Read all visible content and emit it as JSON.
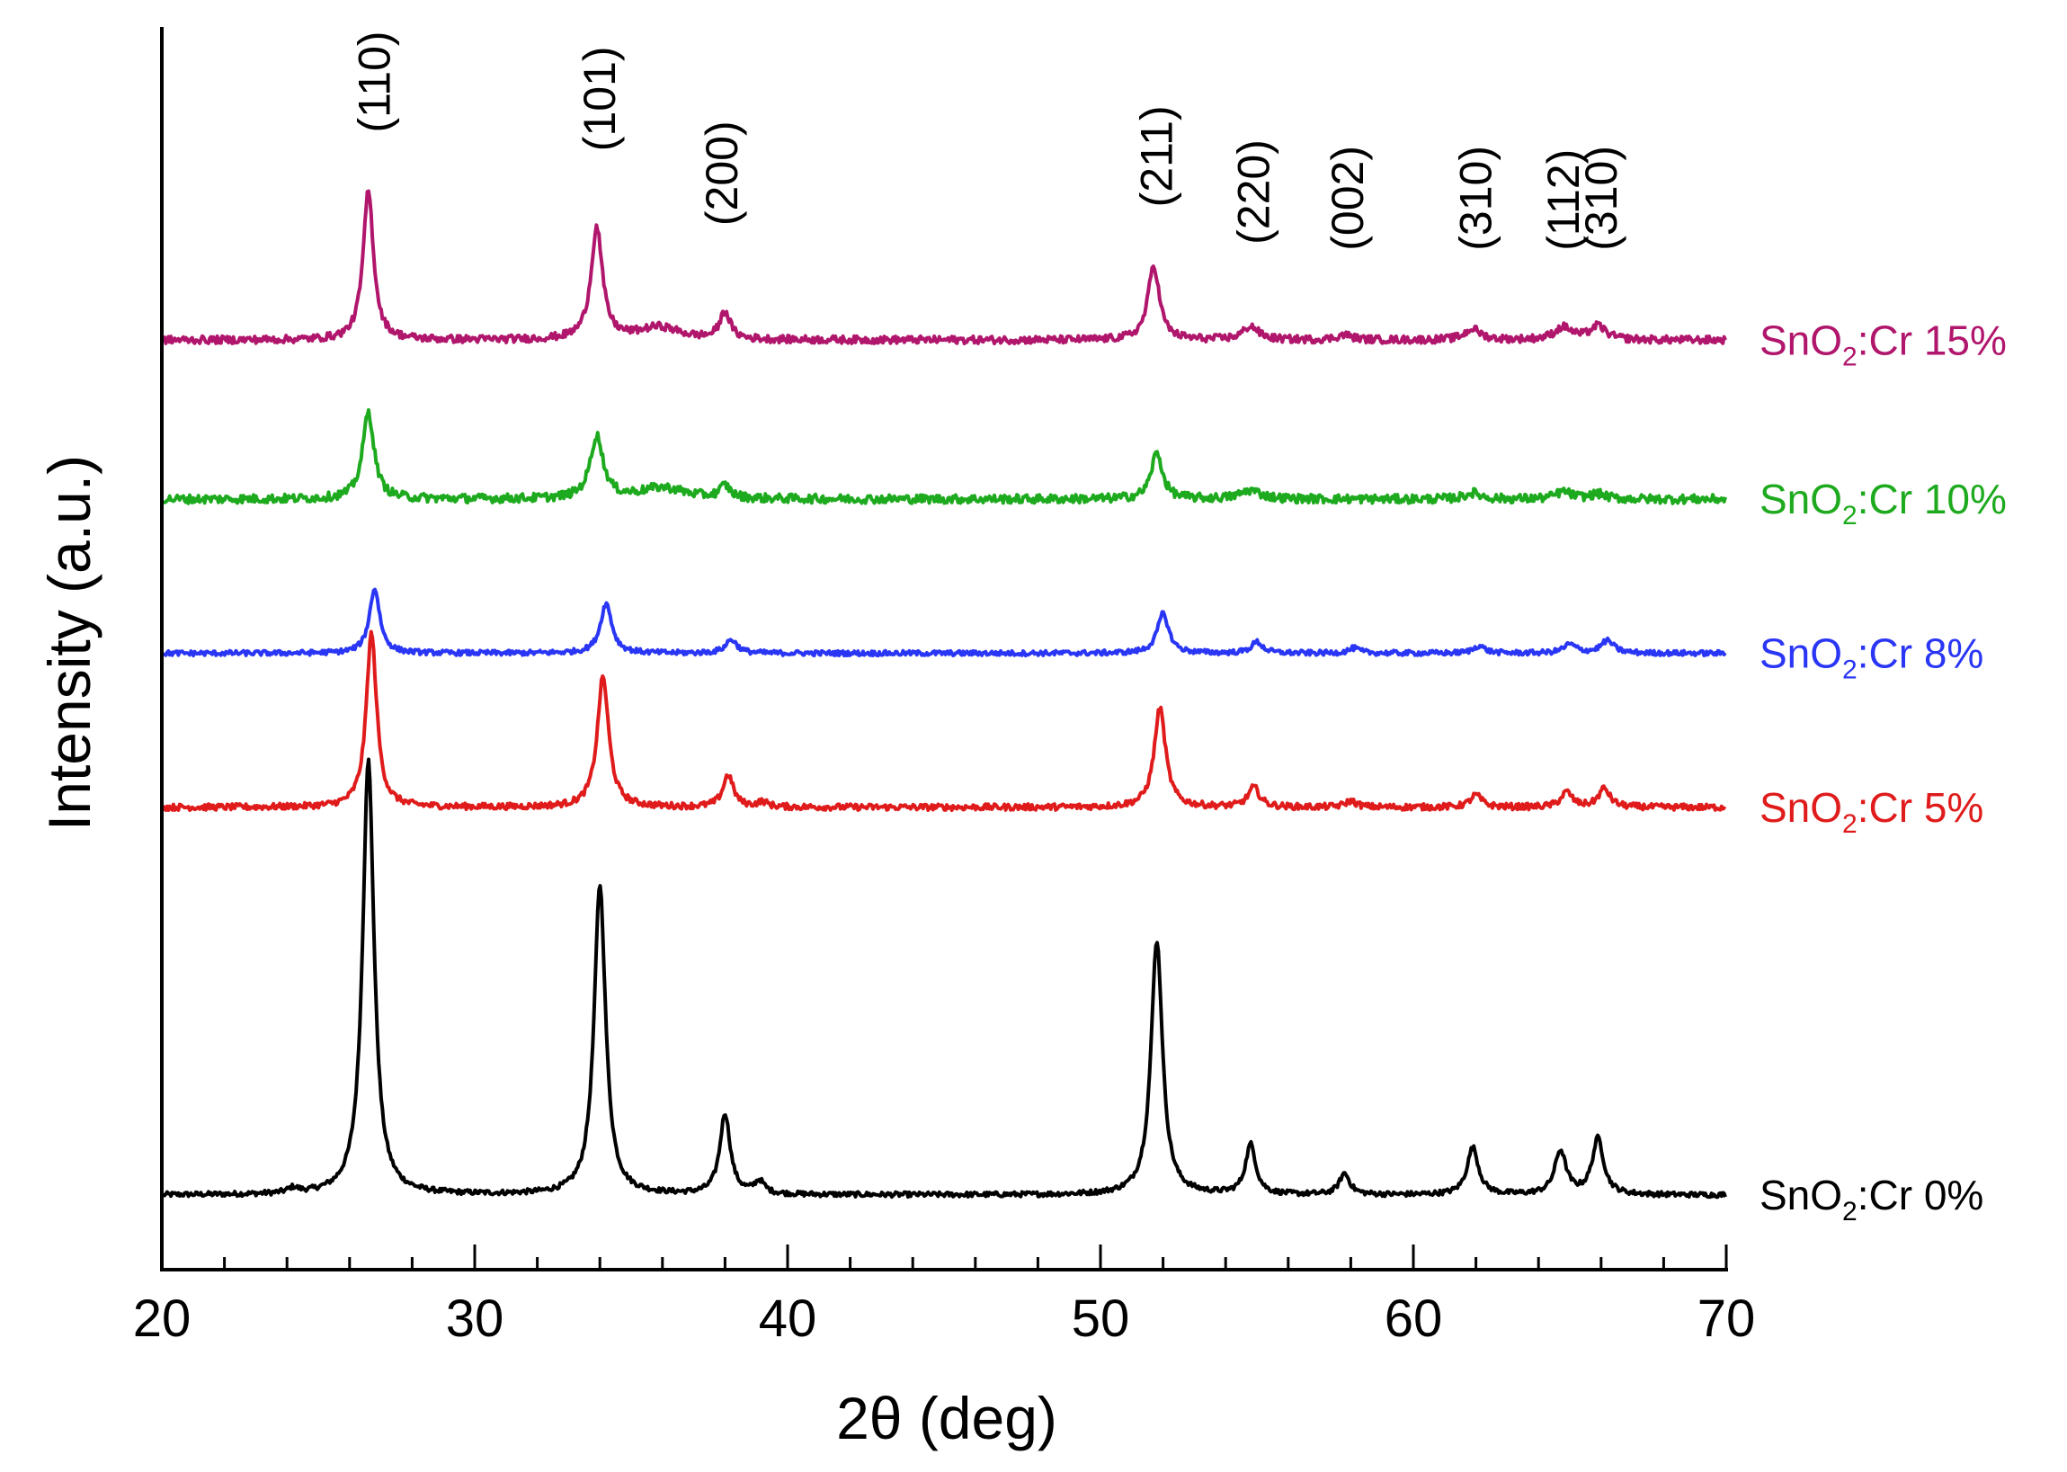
{
  "chart_data": {
    "type": "line",
    "title": "",
    "xlabel": "2θ (deg)",
    "ylabel": "Intensity (a.u.)",
    "xlim": [
      20,
      70
    ],
    "ylim": [
      0,
      100
    ],
    "x_ticks": [
      20,
      30,
      40,
      50,
      60,
      70
    ],
    "x_tick_labels": [
      "20",
      "30",
      "40",
      "50",
      "60",
      "70"
    ],
    "x_minor_step": 2,
    "grid": false,
    "peak_labels": [
      {
        "text": "(110)",
        "x": 26.8,
        "y": 91.5
      },
      {
        "text": "(101)",
        "x": 34.0,
        "y": 90.0
      },
      {
        "text": "(200)",
        "x": 37.9,
        "y": 84.0
      },
      {
        "text": "(211)",
        "x": 51.8,
        "y": 85.5
      },
      {
        "text": "(220)",
        "x": 54.9,
        "y": 82.5
      },
      {
        "text": "(002)",
        "x": 57.9,
        "y": 82.0
      },
      {
        "text": "(310)",
        "x": 62.0,
        "y": 82.0
      },
      {
        "text": "(112)",
        "x": 64.8,
        "y": 82.0
      },
      {
        "text": "(310)",
        "x": 66.0,
        "y": 82.0
      }
    ],
    "series": [
      {
        "name": "SnO2:Cr 0%",
        "legend_main": "SnO",
        "legend_sub": "2",
        "legend_tail": ":Cr 0%",
        "color": "#000000",
        "baseline": 6.0,
        "noise": 0.2,
        "peaks": [
          [
            26.6,
            35.0,
            0.22
          ],
          [
            34.0,
            25.0,
            0.22
          ],
          [
            38.0,
            6.5,
            0.2
          ],
          [
            39.1,
            1.0,
            0.2
          ],
          [
            51.8,
            20.5,
            0.22
          ],
          [
            54.8,
            4.0,
            0.2
          ],
          [
            57.8,
            1.7,
            0.2
          ],
          [
            61.9,
            3.8,
            0.22
          ],
          [
            64.7,
            3.5,
            0.22
          ],
          [
            65.9,
            4.5,
            0.22
          ],
          [
            24.2,
            0.4,
            0.2
          ]
        ]
      },
      {
        "name": "SnO2:Cr 5%",
        "legend_main": "SnO",
        "legend_sub": "2",
        "legend_tail": ":Cr 5%",
        "color": "#e01b1b",
        "baseline": 37.2,
        "noise": 0.25,
        "peaks": [
          [
            26.7,
            14.0,
            0.2
          ],
          [
            34.1,
            10.5,
            0.22
          ],
          [
            38.1,
            2.6,
            0.2
          ],
          [
            39.2,
            0.4,
            0.2
          ],
          [
            51.9,
            8.0,
            0.22
          ],
          [
            54.9,
            1.6,
            0.22
          ],
          [
            58.0,
            0.5,
            0.22
          ],
          [
            62.0,
            1.0,
            0.22
          ],
          [
            64.9,
            1.2,
            0.22
          ],
          [
            66.1,
            1.5,
            0.22
          ]
        ]
      },
      {
        "name": "SnO2:Cr 8%",
        "legend_main": "SnO",
        "legend_sub": "2",
        "legend_tail": ":Cr 8%",
        "color": "#2a36f5",
        "baseline": 49.6,
        "noise": 0.2,
        "peaks": [
          [
            26.8,
            5.2,
            0.2
          ],
          [
            34.2,
            4.0,
            0.22
          ],
          [
            38.2,
            1.1,
            0.22
          ],
          [
            52.0,
            3.2,
            0.22
          ],
          [
            55.0,
            0.9,
            0.22
          ],
          [
            58.1,
            0.4,
            0.22
          ],
          [
            62.1,
            0.6,
            0.22
          ],
          [
            65.0,
            0.7,
            0.25
          ],
          [
            66.2,
            1.0,
            0.25
          ]
        ]
      },
      {
        "name": "SnO2:Cr 10%",
        "legend_main": "SnO",
        "legend_sub": "2",
        "legend_tail": ":Cr 10%",
        "color": "#1eaa1e",
        "baseline": 62.0,
        "noise": 0.35,
        "peaks": [
          [
            26.6,
            7.0,
            0.22
          ],
          [
            33.9,
            5.0,
            0.25
          ],
          [
            36.0,
            0.9,
            0.9
          ],
          [
            38.0,
            1.0,
            0.2
          ],
          [
            51.8,
            3.7,
            0.22
          ],
          [
            54.8,
            0.7,
            0.4
          ],
          [
            61.9,
            0.5,
            0.3
          ],
          [
            64.8,
            0.6,
            0.3
          ],
          [
            65.9,
            0.4,
            0.3
          ]
        ]
      },
      {
        "name": "SnO2:Cr 15%",
        "legend_main": "SnO",
        "legend_sub": "2",
        "legend_tail": ":Cr 15%",
        "color": "#b0166c",
        "baseline": 74.8,
        "noise": 0.3,
        "peaks": [
          [
            26.6,
            12.0,
            0.2
          ],
          [
            33.9,
            9.0,
            0.22
          ],
          [
            35.9,
            1.0,
            0.8
          ],
          [
            38.0,
            2.2,
            0.2
          ],
          [
            51.7,
            6.0,
            0.22
          ],
          [
            54.8,
            1.1,
            0.3
          ],
          [
            57.8,
            0.4,
            0.3
          ],
          [
            61.9,
            0.9,
            0.3
          ],
          [
            64.8,
            1.0,
            0.35
          ],
          [
            65.9,
            1.1,
            0.3
          ]
        ]
      }
    ]
  }
}
